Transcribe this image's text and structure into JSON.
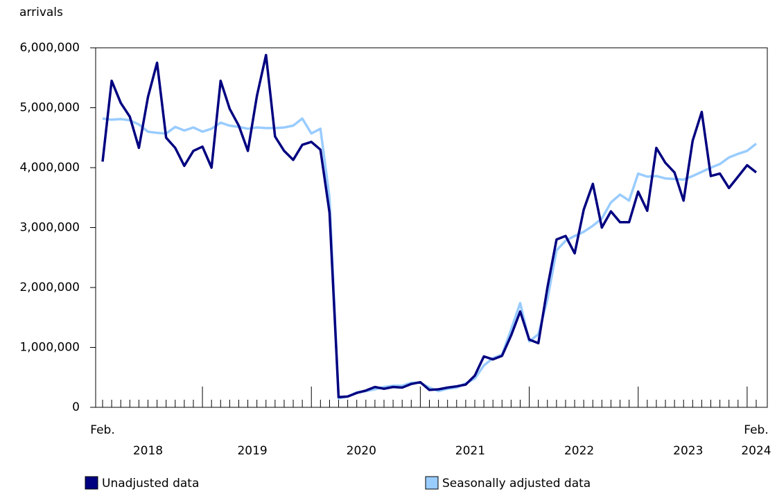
{
  "chart_data": {
    "type": "line",
    "y_label": "arrivals",
    "categories": [
      "Feb.",
      null,
      null,
      null,
      null,
      null,
      null,
      null,
      null,
      null,
      null,
      null,
      null,
      null,
      null,
      null,
      null,
      null,
      null,
      null,
      null,
      null,
      null,
      null,
      null,
      null,
      null,
      null,
      null,
      null,
      null,
      null,
      null,
      null,
      null,
      null,
      null,
      null,
      null,
      null,
      null,
      null,
      null,
      null,
      null,
      null,
      null,
      null,
      null,
      null,
      null,
      null,
      null,
      null,
      null,
      null,
      null,
      null,
      null,
      null,
      null,
      null,
      null,
      null,
      null,
      null,
      null,
      null,
      null,
      null,
      null,
      null,
      "Feb."
    ],
    "year_labels": [
      "2018",
      "2019",
      "2020",
      "2021",
      "2022",
      "2023",
      "2024"
    ],
    "ylim": [
      0,
      6000000
    ],
    "yticks": [
      {
        "value": 0,
        "label": "0"
      },
      {
        "value": 1000000,
        "label": "1,000,000"
      },
      {
        "value": 2000000,
        "label": "2,000,000"
      },
      {
        "value": 3000000,
        "label": "3,000,000"
      },
      {
        "value": 4000000,
        "label": "4,000,000"
      },
      {
        "value": 5000000,
        "label": "5,000,000"
      },
      {
        "value": 6000000,
        "label": "6,000,000"
      }
    ],
    "series": [
      {
        "name": "Unadjusted data",
        "color": "#000080",
        "values": [
          4100000,
          5450000,
          5080000,
          4850000,
          4330000,
          5180000,
          5750000,
          4500000,
          4330000,
          4030000,
          4280000,
          4350000,
          4000000,
          5450000,
          4980000,
          4700000,
          4280000,
          5200000,
          5880000,
          4520000,
          4280000,
          4130000,
          4380000,
          4430000,
          4300000,
          3250000,
          170000,
          180000,
          240000,
          280000,
          340000,
          310000,
          340000,
          330000,
          390000,
          420000,
          290000,
          300000,
          330000,
          350000,
          380000,
          530000,
          850000,
          800000,
          860000,
          1200000,
          1600000,
          1130000,
          1070000,
          2000000,
          2800000,
          2860000,
          2570000,
          3300000,
          3730000,
          3000000,
          3270000,
          3090000,
          3090000,
          3600000,
          3280000,
          4330000,
          4080000,
          3920000,
          3450000,
          4450000,
          4930000,
          3860000,
          3900000,
          3660000,
          3850000,
          4040000,
          3920000
        ]
      },
      {
        "name": "Seasonally adjusted data",
        "color": "#99ccff",
        "values": [
          4820000,
          4800000,
          4810000,
          4790000,
          4720000,
          4600000,
          4580000,
          4570000,
          4680000,
          4620000,
          4670000,
          4600000,
          4650000,
          4750000,
          4700000,
          4680000,
          4650000,
          4670000,
          4660000,
          4660000,
          4670000,
          4700000,
          4820000,
          4570000,
          4650000,
          3500000,
          150000,
          180000,
          250000,
          270000,
          300000,
          340000,
          360000,
          360000,
          410000,
          410000,
          330000,
          270000,
          310000,
          330000,
          400000,
          480000,
          700000,
          820000,
          880000,
          1300000,
          1740000,
          1100000,
          1220000,
          1800000,
          2620000,
          2780000,
          2860000,
          2930000,
          3030000,
          3150000,
          3420000,
          3550000,
          3450000,
          3900000,
          3850000,
          3860000,
          3820000,
          3810000,
          3800000,
          3860000,
          3930000,
          4000000,
          4060000,
          4170000,
          4230000,
          4280000,
          4400000
        ]
      }
    ]
  }
}
